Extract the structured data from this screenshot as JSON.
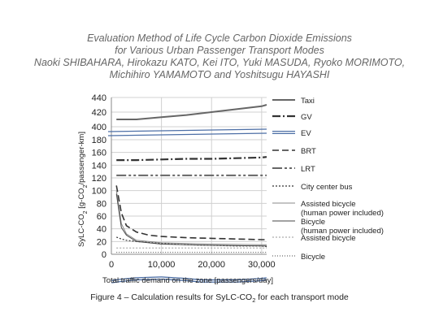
{
  "header": {
    "title_line1": "Evaluation Method of Life Cycle Carbon Dioxide Emissions",
    "title_line2": "for Various Urban Passenger Transport Modes",
    "authors_line1": "Naoki SHIBAHARA, Hirokazu KATO, Kei ITO, Yuki MASUDA, Ryoko MORIMOTO,",
    "authors_line2": "Michihiro YAMAMOTO and Yoshitsugu HAYASHI"
  },
  "caption": {
    "prefix": "Figure 4 – Calculation results for SyLC-CO",
    "sub": "2",
    "suffix": " for each transport mode"
  },
  "chart_data": {
    "type": "line",
    "xlabel": "Total traffic demand on the zone [passengers/day]",
    "ylabel": "SyLC-CO2 [g-CO2/passenger-km]",
    "xlim": [
      0,
      31000
    ],
    "x_ticks": [
      "0",
      "10,000",
      "20,000",
      "30,000"
    ],
    "x_tick_values": [
      0,
      10000,
      20000,
      30000
    ],
    "y_ticks": [
      "0",
      "20",
      "40",
      "60",
      "80",
      "100",
      "120",
      "140",
      "160",
      "180",
      "400",
      "420",
      "440"
    ],
    "y_axis_note": "broken axis: 0-180 linear, jump between 180 and 400",
    "grid": true,
    "legend_position": "right",
    "series": [
      {
        "name": "Taxi",
        "color": "#666666",
        "style": "solid-thick",
        "x": [
          1000,
          5000,
          10000,
          15000,
          20000,
          25000,
          30000,
          31000
        ],
        "y": [
          410,
          410,
          413,
          416,
          420,
          424,
          428,
          430
        ]
      },
      {
        "name": "GV",
        "color": "#333333",
        "style": "long-dash-dot-thick",
        "x": [
          1000,
          5000,
          10000,
          15000,
          20000,
          25000,
          30000,
          31000
        ],
        "y": [
          148,
          148,
          149,
          150,
          150,
          151,
          152,
          153
        ]
      },
      {
        "name": "EV",
        "color": "#4d6fa6",
        "style": "double-line",
        "x": [
          0,
          2000,
          5000,
          10000,
          15000,
          18000,
          20000,
          25000,
          30000,
          31000
        ],
        "y": [
          188,
          190,
          192,
          193,
          191,
          189,
          189,
          189,
          191,
          192
        ]
      },
      {
        "name": "BRT",
        "color": "#333333",
        "style": "long-dash",
        "x": [
          1000,
          2000,
          3000,
          5000,
          7500,
          10000,
          15000,
          20000,
          25000,
          30000,
          31000
        ],
        "y": [
          108,
          65,
          45,
          35,
          30,
          28,
          26,
          25,
          24,
          23,
          23
        ]
      },
      {
        "name": "LRT",
        "color": "#666666",
        "style": "dash-dot-dot-thick",
        "x": [
          1000,
          10000,
          20000,
          30000,
          31000
        ],
        "y": [
          124,
          124,
          124,
          124,
          124
        ]
      },
      {
        "name": "City center bus",
        "color": "#333333",
        "style": "dotted",
        "x": [
          1000,
          2000,
          3000,
          5000,
          10000,
          15000,
          20000,
          25000,
          30000,
          31000
        ],
        "y": [
          27,
          24,
          22,
          20,
          17,
          15,
          14,
          13,
          13,
          12
        ]
      },
      {
        "name": "Assisted bicycle\n(human power included)",
        "color": "#888888",
        "style": "solid-thin",
        "x": [
          1000,
          2000,
          3000,
          5000,
          10000,
          20000,
          30000,
          31000
        ],
        "y": [
          100,
          48,
          32,
          22,
          18,
          16,
          15,
          15
        ]
      },
      {
        "name": "Bicycle\n(human power included)",
        "color": "#444444",
        "style": "solid-thin",
        "x": [
          1000,
          2000,
          3000,
          5000,
          10000,
          20000,
          30000,
          31000
        ],
        "y": [
          95,
          42,
          30,
          20,
          16,
          14,
          13,
          13
        ]
      },
      {
        "name": "Assisted bicycle",
        "color": "#999999",
        "style": "dotted-light",
        "x": [
          1000,
          10000,
          20000,
          30000,
          31000
        ],
        "y": [
          10,
          10,
          10,
          10,
          10
        ]
      },
      {
        "name": "Bicycle",
        "color": "#444444",
        "style": "dotted-fine",
        "x": [
          1000,
          10000,
          20000,
          30000,
          31000
        ],
        "y": [
          3,
          3,
          3,
          3,
          3
        ]
      }
    ]
  }
}
